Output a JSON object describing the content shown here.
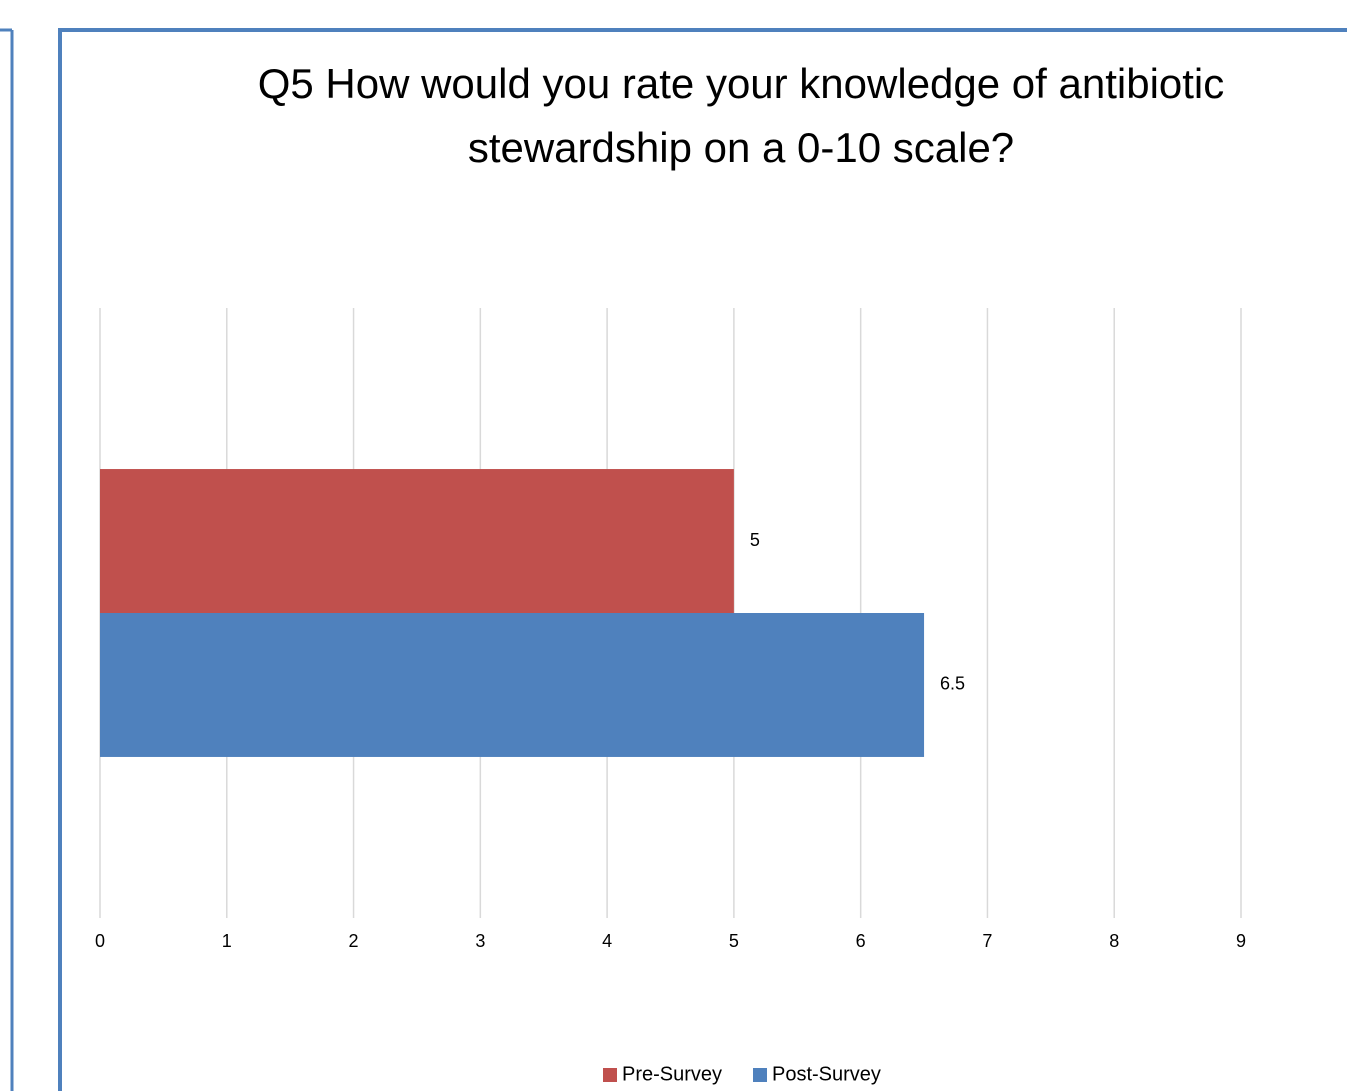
{
  "chart_data": {
    "type": "bar",
    "orientation": "horizontal",
    "title": "Q5 How would you rate your knowledge of antibiotic stewardship on a 0-10 scale?",
    "categories": [
      null
    ],
    "series": [
      {
        "name": "Pre-Survey",
        "color": "#c0504d",
        "values": [
          5
        ]
      },
      {
        "name": "Post-Survey",
        "color": "#4f81bd",
        "values": [
          6.5
        ]
      }
    ],
    "xlim": [
      0,
      9
    ],
    "xticks": [
      0,
      1,
      2,
      3,
      4,
      5,
      6,
      7,
      8,
      9
    ],
    "grid": true,
    "legend": "bottom"
  }
}
